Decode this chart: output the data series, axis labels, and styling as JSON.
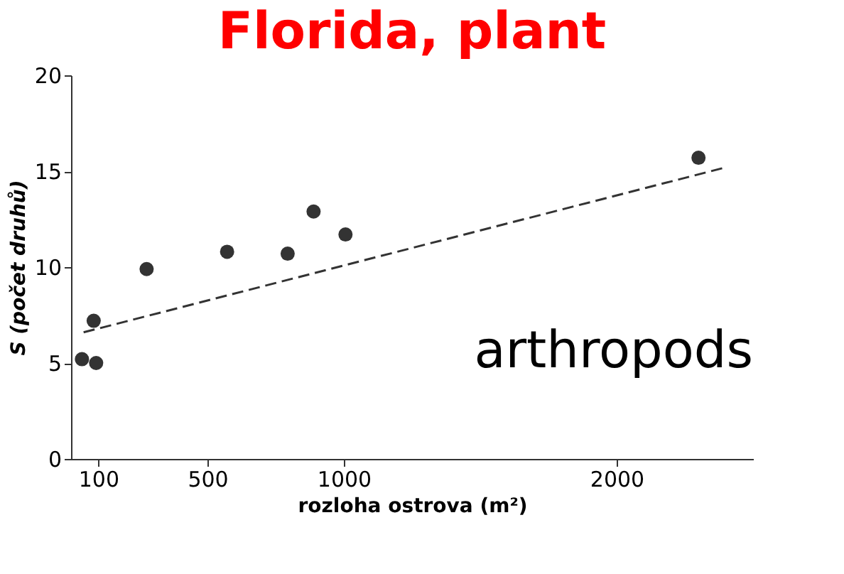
{
  "chart_data": {
    "type": "scatter",
    "title": "Florida, plant",
    "xlabel": "rozloha ostrova (m²)",
    "ylabel": "S (počet druhů)",
    "annotations": [
      "arthropods"
    ],
    "xlim": [
      0,
      2500
    ],
    "xticks": [
      100,
      500,
      1000,
      {
        "value": 2000,
        "label": "2000"
      }
    ],
    "ylim": [
      0,
      20
    ],
    "yticks": [
      0,
      5,
      10,
      15,
      20
    ],
    "grid": false,
    "series": [
      {
        "color": "#333333",
        "marker": "circle",
        "x": [
          40,
          83,
          92,
          277,
          572,
          794,
          889,
          1006,
          2300
        ],
        "values": [
          5.2,
          7.2,
          5.0,
          9.9,
          10.8,
          10.7,
          12.9,
          11.7,
          15.7
        ]
      },
      {
        "type": "line",
        "color": "#333333",
        "line_style": "dashed",
        "x": [
          46,
          2400
        ],
        "values": [
          6.6,
          15.2
        ]
      }
    ]
  }
}
